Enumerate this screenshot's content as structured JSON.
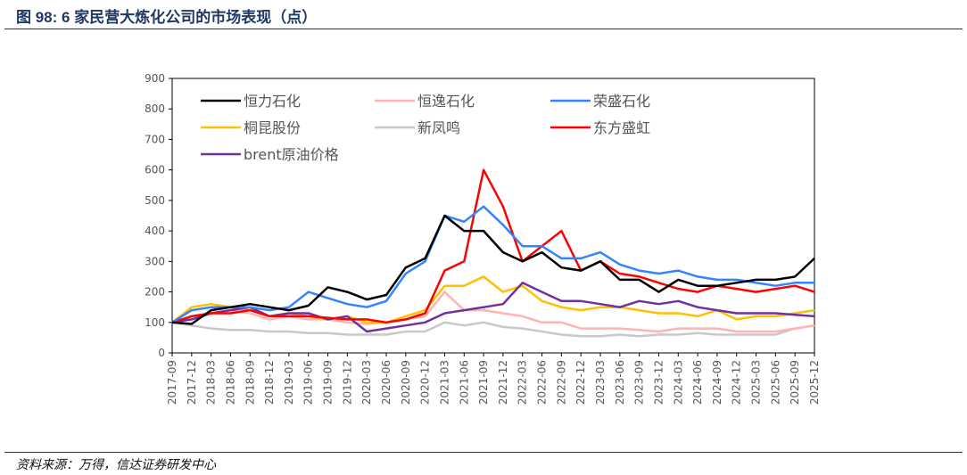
{
  "title": "图 98:  6 家民营大炼化公司的市场表现（点）",
  "source": "资料来源：万得，信达证券研发中心",
  "chart_data": {
    "type": "line",
    "title": "",
    "xlabel": "",
    "ylabel": "",
    "ylim": [
      0,
      900
    ],
    "yticks": [
      0,
      100,
      200,
      300,
      400,
      500,
      600,
      700,
      800,
      900
    ],
    "grid": false,
    "legend_position": "top-left",
    "x": [
      "2017-09",
      "2017-12",
      "2018-03",
      "2018-06",
      "2018-09",
      "2018-12",
      "2019-03",
      "2019-06",
      "2019-09",
      "2019-12",
      "2020-03",
      "2020-06",
      "2020-09",
      "2020-12",
      "2021-03",
      "2021-06",
      "2021-09",
      "2021-12",
      "2022-03",
      "2022-06",
      "2022-09",
      "2022-12",
      "2023-03",
      "2023-06",
      "2023-09",
      "2023-12",
      "2024-03",
      "2024-06",
      "2024-09",
      "2024-12",
      "2025-03",
      "2025-06",
      "2025-09",
      "2025-12"
    ],
    "series": [
      {
        "name": "恒力石化",
        "color": "#000000",
        "values": [
          100,
          95,
          140,
          150,
          160,
          150,
          140,
          155,
          215,
          200,
          175,
          190,
          280,
          310,
          450,
          400,
          400,
          330,
          300,
          330,
          280,
          270,
          300,
          240,
          240,
          200,
          240,
          220,
          220,
          230,
          240,
          240,
          250,
          310
        ]
      },
      {
        "name": "恒逸石化",
        "color": "#ffb3b3",
        "values": [
          100,
          120,
          130,
          140,
          130,
          110,
          120,
          110,
          110,
          100,
          95,
          100,
          110,
          120,
          200,
          140,
          140,
          130,
          120,
          100,
          100,
          80,
          80,
          80,
          75,
          70,
          80,
          80,
          80,
          70,
          70,
          70,
          80,
          90
        ]
      },
      {
        "name": "荣盛石化",
        "color": "#3385ff",
        "values": [
          100,
          140,
          150,
          150,
          150,
          140,
          150,
          200,
          180,
          160,
          150,
          170,
          260,
          300,
          450,
          430,
          480,
          420,
          350,
          350,
          310,
          310,
          330,
          290,
          270,
          260,
          270,
          250,
          240,
          240,
          230,
          220,
          230,
          230
        ]
      },
      {
        "name": "桐昆股份",
        "color": "#ffc000",
        "values": [
          100,
          150,
          160,
          150,
          140,
          120,
          130,
          120,
          110,
          120,
          100,
          100,
          120,
          140,
          220,
          220,
          250,
          200,
          220,
          170,
          150,
          140,
          150,
          150,
          140,
          130,
          130,
          120,
          140,
          110,
          120,
          120,
          130,
          140
        ]
      },
      {
        "name": "新凤鸣",
        "color": "#c8c8c8",
        "values": [
          100,
          90,
          80,
          75,
          75,
          70,
          70,
          65,
          65,
          60,
          60,
          60,
          70,
          70,
          100,
          90,
          100,
          85,
          80,
          70,
          60,
          55,
          55,
          60,
          55,
          60,
          60,
          65,
          60,
          60,
          60,
          60,
          80,
          90
        ]
      },
      {
        "name": "东方盛虹",
        "color": "#ff0000",
        "values": [
          100,
          120,
          130,
          130,
          140,
          120,
          120,
          120,
          115,
          110,
          110,
          100,
          110,
          130,
          270,
          300,
          600,
          480,
          300,
          350,
          400,
          270,
          300,
          260,
          250,
          230,
          210,
          200,
          220,
          210,
          200,
          210,
          220,
          200
        ]
      },
      {
        "name": "brent原油价格",
        "color": "#7030a0",
        "values": [
          100,
          110,
          130,
          140,
          150,
          120,
          130,
          130,
          110,
          120,
          70,
          80,
          90,
          100,
          130,
          140,
          150,
          160,
          230,
          200,
          170,
          170,
          160,
          150,
          170,
          160,
          170,
          150,
          140,
          130,
          130,
          130,
          125,
          120
        ]
      }
    ]
  }
}
